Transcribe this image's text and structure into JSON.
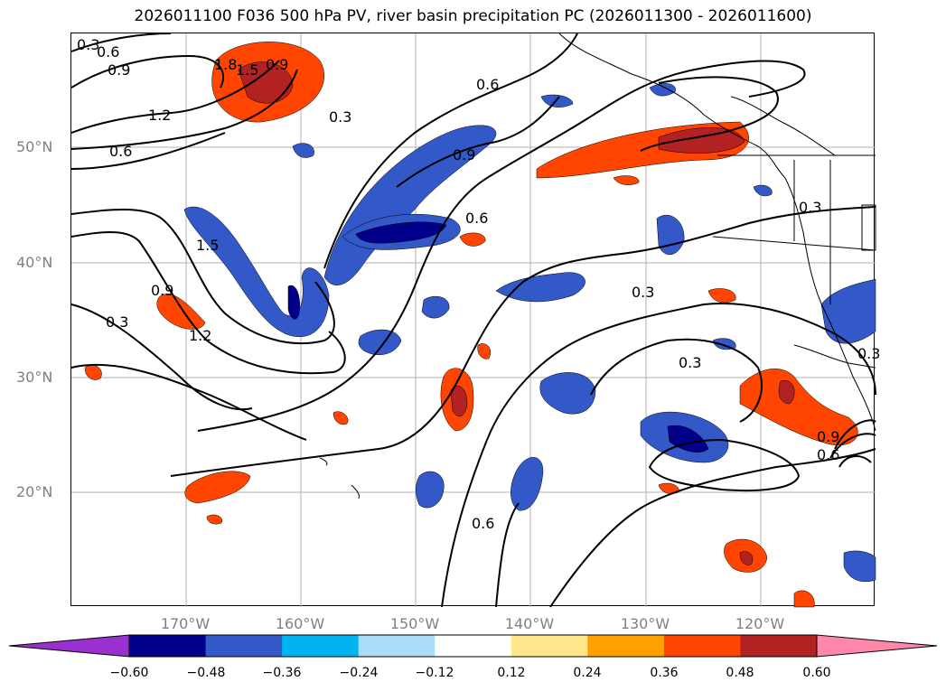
{
  "title": "2026011100 F036 500 hPa PV, river basin precipitation PC (2026011300 - 2026011600)",
  "lat_labels": [
    "50°N",
    "40°N",
    "30°N",
    "20°N"
  ],
  "lon_labels": [
    "170°W",
    "160°W",
    "150°W",
    "140°W",
    "130°W",
    "120°W"
  ],
  "contour_labels": [
    "0.3",
    "0.6",
    "0.9",
    "1.8",
    "1.5",
    "0.9",
    "1.2",
    "0.6",
    "0.3",
    "0.6",
    "0.9",
    "0.6",
    "0.3",
    "1.5",
    "0.9",
    "1.2",
    "0.3",
    "0.3",
    "0.3",
    "0.3",
    "0.9",
    "0.6",
    "0.6"
  ],
  "colorbar": {
    "ticks": [
      "−0.60",
      "−0.48",
      "−0.36",
      "−0.24",
      "−0.12",
      "0.12",
      "0.24",
      "0.36",
      "0.48",
      "0.60"
    ],
    "colors": [
      "#9b30d0",
      "#00008b",
      "#3358c8",
      "#00b4f0",
      "#aadcf8",
      "#ffffff",
      "#ffe68a",
      "#ff9f00",
      "#ff4500",
      "#b22222",
      "#ff88aa"
    ]
  },
  "colors": {
    "neg_strong": "#00008b",
    "neg_mid": "#3358c8",
    "neg_light": "#00b4f0",
    "pos_light": "#ffe68a",
    "pos_mid": "#ff9f00",
    "pos_strong": "#ff4500",
    "pos_max": "#b22222",
    "grid": "#b0b0b0"
  }
}
